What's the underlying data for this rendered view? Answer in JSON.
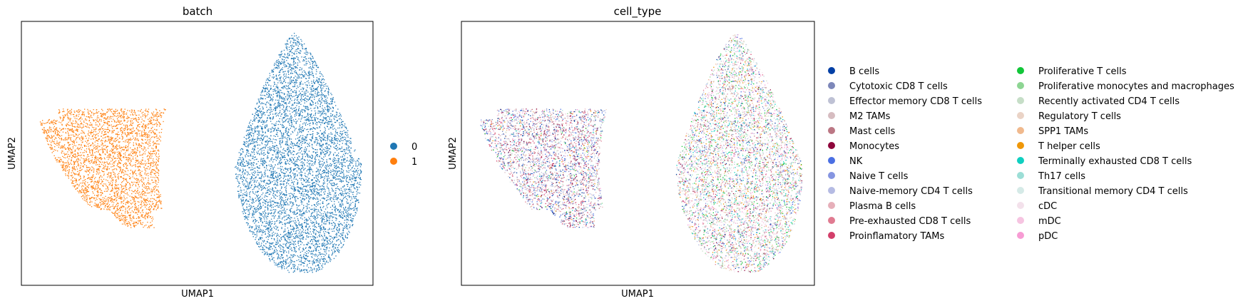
{
  "chart_data": [
    {
      "type": "scatter",
      "title": "batch",
      "xlabel": "UMAP1",
      "ylabel": "UMAP2",
      "grid": false,
      "ticks": false,
      "legend_placement": "right",
      "categories": [
        "0",
        "1"
      ],
      "colors": [
        "#1f77b4",
        "#ff7f0e"
      ],
      "clusters": [
        {
          "category": "1",
          "x_range": [
            0.04,
            0.42
          ],
          "y_range": [
            0.22,
            0.65
          ]
        },
        {
          "category": "0",
          "x_range": [
            0.62,
            0.96
          ],
          "y_range": [
            0.04,
            0.96
          ]
        }
      ]
    },
    {
      "type": "scatter",
      "title": "cell_type",
      "xlabel": "UMAP1",
      "ylabel": "UMAP2",
      "grid": false,
      "ticks": false,
      "legend_placement": "right",
      "categories": [
        "B cells",
        "Cytotoxic CD8 T cells",
        "Effector memory CD8 T cells",
        "M2 TAMs",
        "Mast cells",
        "Monocytes",
        "NK",
        "Naive T cells",
        "Naive-memory CD4 T cells",
        "Plasma B cells",
        "Pre-exhausted CD8 T cells",
        "Proinflamatory TAMs",
        "Proliferative T cells",
        "Proliferative monocytes and macrophages",
        "Recently activated CD4 T cells",
        "Regulatory T cells",
        "SPP1 TAMs",
        "T helper cells",
        "Terminally exhausted CD8 T cells",
        "Th17 cells",
        "Transitional memory CD4 T cells",
        "cDC",
        "mDC",
        "pDC"
      ],
      "colors": [
        "#023fa5",
        "#7d87b9",
        "#bec1d4",
        "#d6bcc0",
        "#bb7784",
        "#8e063b",
        "#4a6fe3",
        "#8595e1",
        "#b5bbe3",
        "#e6afb9",
        "#e07b91",
        "#d33f6a",
        "#11c638",
        "#8dd593",
        "#c6dec7",
        "#ead3c6",
        "#f0b98d",
        "#ef9708",
        "#0fcfc0",
        "#9cded6",
        "#d5eae7",
        "#f3e1eb",
        "#f6c4e1",
        "#f79cd4"
      ],
      "clusters": [
        {
          "x_range": [
            0.04,
            0.42
          ],
          "y_range": [
            0.22,
            0.65
          ]
        },
        {
          "x_range": [
            0.62,
            0.96
          ],
          "y_range": [
            0.04,
            0.96
          ]
        }
      ]
    }
  ]
}
